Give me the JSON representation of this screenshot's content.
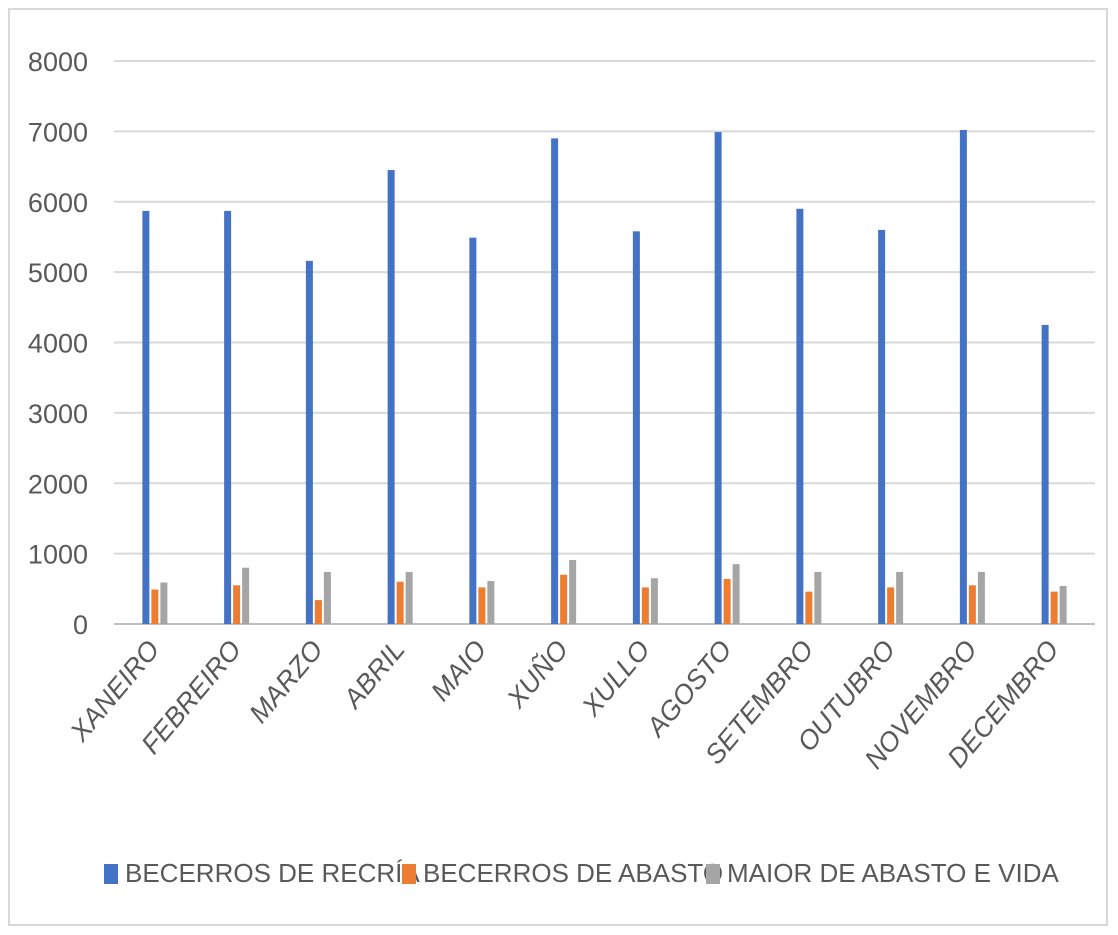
{
  "chart_data": {
    "type": "bar",
    "title": "",
    "xlabel": "",
    "ylabel": "",
    "ylim": [
      0,
      8000
    ],
    "yticks": [
      0,
      1000,
      2000,
      3000,
      4000,
      5000,
      6000,
      7000,
      8000
    ],
    "grid": true,
    "legend_position": "bottom",
    "categories": [
      "XANEIRO",
      "FEBREIRO",
      "MARZO",
      "ABRIL",
      "MAIO",
      "XUÑO",
      "XULLO",
      "AGOSTO",
      "SETEMBRO",
      "OUTUBRO",
      "NOVEMBRO",
      "DECEMBRO"
    ],
    "series": [
      {
        "name": "BECERROS DE RECRÍA",
        "color": "#4472C4",
        "values": [
          5870,
          5870,
          5160,
          6450,
          5490,
          6900,
          5580,
          6990,
          5900,
          5600,
          7020,
          4250
        ]
      },
      {
        "name": "BECERROS DE ABASTO",
        "color": "#ED7D31",
        "values": [
          490,
          550,
          340,
          600,
          520,
          700,
          520,
          640,
          460,
          520,
          550,
          460
        ]
      },
      {
        "name": "MAIOR DE ABASTO E VIDA",
        "color": "#A5A5A5",
        "values": [
          590,
          800,
          740,
          740,
          610,
          910,
          650,
          850,
          740,
          740,
          740,
          540
        ]
      }
    ]
  }
}
